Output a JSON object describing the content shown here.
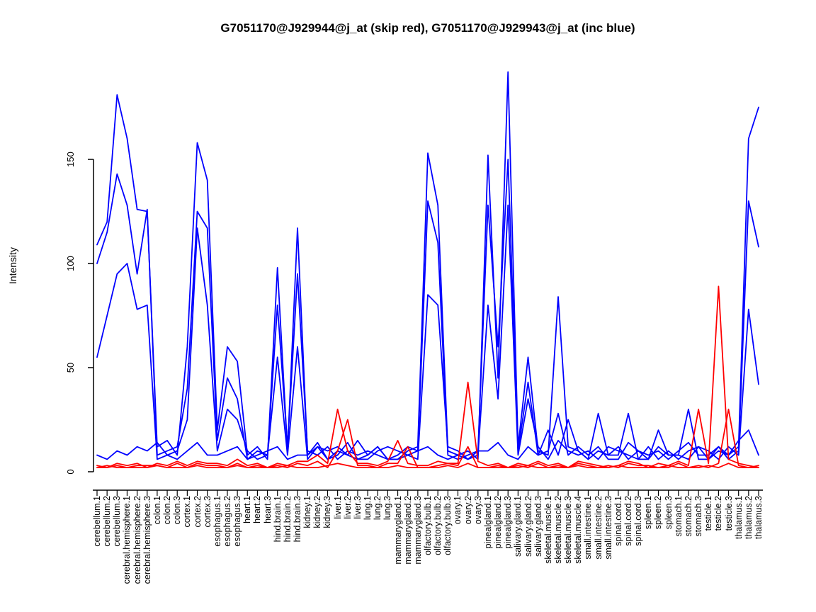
{
  "chart_data": {
    "type": "line",
    "title": "G7051170@J929944@j_at (skip red), G7051170@J929943@j_at (inc blue)",
    "xlabel": "",
    "ylabel": "Intensity",
    "ylim": [
      0,
      195
    ],
    "yticks": [
      0,
      50,
      100,
      150
    ],
    "grid": false,
    "legend_position": "none",
    "series_colors": {
      "skip": "#ff0000",
      "include": "#0000ff"
    },
    "categories": [
      "cerebellum.1",
      "cerebellum.2",
      "cerebellum.3",
      "cerebral.hemisphere.1",
      "cerebral.hemisphere.2",
      "cerebral.hemisphere.3",
      "colon.1",
      "colon.2",
      "colon.3",
      "cortex.1",
      "cortex.2",
      "cortex.3",
      "esophagus.1",
      "esophagus.2",
      "esophagus.3",
      "heart.1",
      "heart.2",
      "heart.3",
      "hind.brain.1",
      "hind.brain.2",
      "hind.brain.3",
      "kidney.1",
      "kidney.2",
      "kidney.3",
      "liver.1",
      "liver.2",
      "liver.3",
      "lung.1",
      "lung.2",
      "lung.3",
      "mammarygland.1",
      "mammarygland.2",
      "mammarygland.3",
      "olfactory.bulb.1",
      "olfactory.bulb.2",
      "olfactory.bulb.3",
      "ovary.1",
      "ovary.2",
      "ovary.3",
      "pinealgland.1",
      "pinealgland.2",
      "pinealgland.3",
      "salivary.gland.1",
      "salivary.gland.2",
      "salivary.gland.3",
      "skeletal.muscle.1",
      "skeletal.muscle.2",
      "skeletal.muscle.3",
      "skeletal.muscle.4",
      "small.intestine.1",
      "small.intestine.2",
      "small.intestine.3",
      "spinal.cord.1",
      "spinal.cord.2",
      "spinal.cord.3",
      "spleen.1",
      "spleen.2",
      "spleen.3",
      "stomach.1",
      "stomach.2",
      "stomach.3",
      "testicle.1",
      "testicle.2",
      "testicle.3",
      "thalamus.1",
      "thalamus.2",
      "thalamus.3"
    ],
    "series": [
      {
        "name": "blue-1",
        "group": "inc",
        "color": "#0000ff",
        "values": [
          109,
          120,
          181,
          160,
          126,
          125,
          12,
          15,
          8,
          60,
          158,
          140,
          20,
          60,
          53,
          8,
          12,
          6,
          98,
          10,
          117,
          8,
          12,
          6,
          8,
          14,
          6,
          8,
          12,
          6,
          6,
          10,
          12,
          153,
          128,
          10,
          8,
          10,
          6,
          152,
          45,
          192,
          12,
          55,
          10,
          8,
          84,
          12,
          10,
          6,
          10,
          8,
          8,
          28,
          6,
          6,
          12,
          8,
          8,
          30,
          6,
          6,
          10,
          8,
          12,
          160,
          175
        ]
      },
      {
        "name": "blue-2",
        "group": "inc",
        "color": "#0000ff",
        "values": [
          100,
          115,
          143,
          128,
          95,
          126,
          8,
          10,
          12,
          40,
          125,
          117,
          15,
          45,
          35,
          6,
          10,
          8,
          80,
          12,
          95,
          10,
          8,
          12,
          6,
          10,
          8,
          10,
          8,
          6,
          8,
          12,
          10,
          130,
          110,
          8,
          6,
          8,
          10,
          128,
          60,
          150,
          10,
          43,
          8,
          10,
          28,
          8,
          12,
          8,
          12,
          6,
          6,
          14,
          10,
          8,
          10,
          6,
          10,
          14,
          8,
          8,
          12,
          6,
          10,
          130,
          108
        ]
      },
      {
        "name": "blue-3",
        "group": "inc",
        "color": "#0000ff",
        "values": [
          55,
          75,
          95,
          100,
          78,
          80,
          6,
          8,
          10,
          25,
          117,
          80,
          10,
          30,
          25,
          10,
          6,
          8,
          55,
          8,
          60,
          6,
          12,
          10,
          12,
          8,
          6,
          6,
          10,
          12,
          10,
          8,
          6,
          85,
          80,
          12,
          10,
          6,
          8,
          80,
          35,
          128,
          8,
          35,
          12,
          6,
          15,
          10,
          8,
          10,
          6,
          12,
          10,
          8,
          6,
          12,
          6,
          10,
          6,
          10,
          12,
          10,
          6,
          12,
          8,
          78,
          42
        ]
      },
      {
        "name": "blue-4",
        "group": "inc",
        "color": "#0000ff",
        "values": [
          8,
          6,
          10,
          8,
          12,
          10,
          14,
          8,
          6,
          10,
          14,
          8,
          8,
          10,
          12,
          6,
          8,
          10,
          12,
          6,
          8,
          8,
          14,
          6,
          10,
          8,
          15,
          8,
          12,
          6,
          6,
          8,
          10,
          12,
          8,
          6,
          8,
          6,
          10,
          10,
          14,
          8,
          6,
          12,
          8,
          20,
          8,
          25,
          10,
          6,
          28,
          8,
          12,
          6,
          10,
          6,
          20,
          8,
          8,
          6,
          12,
          6,
          12,
          8,
          15,
          20,
          8
        ]
      },
      {
        "name": "red-1",
        "group": "skip",
        "color": "#ff0000",
        "values": [
          3,
          2,
          4,
          3,
          4,
          2,
          4,
          3,
          5,
          3,
          5,
          4,
          4,
          3,
          6,
          3,
          4,
          2,
          4,
          3,
          5,
          5,
          8,
          4,
          30,
          10,
          4,
          4,
          3,
          5,
          15,
          4,
          3,
          3,
          5,
          4,
          4,
          43,
          5,
          3,
          4,
          2,
          4,
          3,
          5,
          3,
          4,
          2,
          5,
          4,
          3,
          2,
          3,
          5,
          4,
          2,
          4,
          3,
          5,
          3,
          30,
          4,
          89,
          6,
          4,
          3,
          2
        ]
      },
      {
        "name": "red-2",
        "group": "skip",
        "color": "#ff0000",
        "values": [
          2,
          3,
          2,
          2,
          3,
          3,
          3,
          2,
          4,
          2,
          4,
          3,
          3,
          2,
          4,
          2,
          3,
          2,
          3,
          2,
          4,
          3,
          5,
          2,
          10,
          25,
          3,
          3,
          2,
          4,
          4,
          12,
          2,
          2,
          3,
          4,
          3,
          12,
          2,
          2,
          3,
          2,
          3,
          2,
          4,
          2,
          3,
          2,
          4,
          3,
          2,
          3,
          2,
          4,
          3,
          3,
          2,
          2,
          4,
          2,
          3,
          2,
          4,
          30,
          3,
          2,
          3
        ]
      },
      {
        "name": "red-3",
        "group": "skip",
        "color": "#ff0000",
        "values": [
          2,
          2,
          3,
          2,
          2,
          2,
          3,
          2,
          2,
          2,
          3,
          2,
          2,
          2,
          3,
          2,
          2,
          2,
          2,
          3,
          2,
          2,
          2,
          3,
          4,
          3,
          2,
          2,
          2,
          2,
          3,
          2,
          2,
          2,
          2,
          3,
          2,
          4,
          2,
          2,
          2,
          2,
          2,
          3,
          2,
          2,
          2,
          2,
          3,
          2,
          2,
          2,
          3,
          2,
          2,
          2,
          2,
          3,
          2,
          2,
          2,
          3,
          2,
          4,
          2,
          2,
          2
        ]
      }
    ]
  }
}
